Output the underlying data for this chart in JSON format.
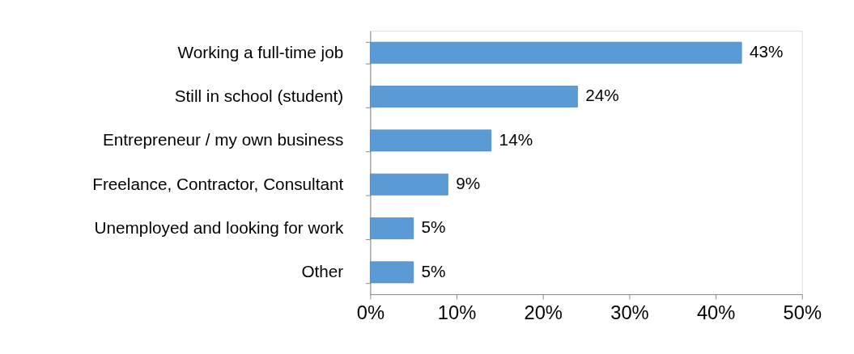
{
  "chart_data": {
    "type": "bar",
    "orientation": "horizontal",
    "categories": [
      "Working a full-time job",
      "Still in school (student)",
      "Entrepreneur / my own business",
      "Freelance, Contractor, Consultant",
      "Unemployed and looking for work",
      "Other"
    ],
    "values": [
      43,
      24,
      14,
      9,
      5,
      5
    ],
    "value_labels": [
      "43%",
      "24%",
      "14%",
      "9%",
      "5%",
      "5%"
    ],
    "color": "#5b9bd5",
    "xlim": [
      0,
      50
    ],
    "xticks": [
      {
        "value": 0,
        "label": "0%"
      },
      {
        "value": 10,
        "label": "10%"
      },
      {
        "value": 20,
        "label": "20%"
      },
      {
        "value": 30,
        "label": "30%"
      },
      {
        "value": 40,
        "label": "40%"
      },
      {
        "value": 50,
        "label": "50%"
      }
    ],
    "grid": false
  }
}
